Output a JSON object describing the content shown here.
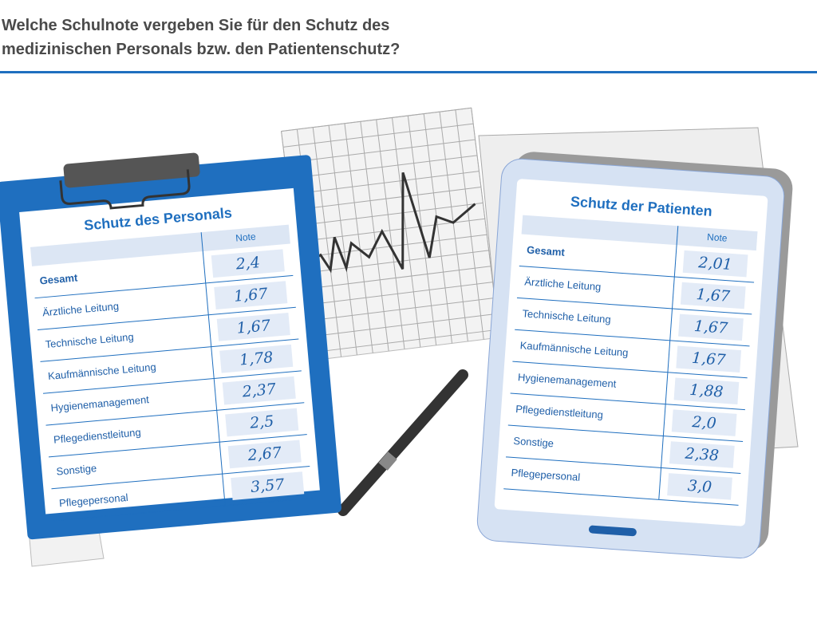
{
  "header": {
    "title_lines": [
      "Welche Schulnote vergeben Sie für den Schutz des",
      "medizinischen Personals bzw. den Patientenschutz?"
    ]
  },
  "clipboard": {
    "title": "Schutz des Personals",
    "column": "Note",
    "rows": [
      {
        "label": "Gesamt",
        "grade": "2,4"
      },
      {
        "label": "Ärztliche Leitung",
        "grade": "1,67"
      },
      {
        "label": "Technische Leitung",
        "grade": "1,67"
      },
      {
        "label": "Kaufmännische Leitung",
        "grade": "1,78"
      },
      {
        "label": "Hygienemanagement",
        "grade": "2,37"
      },
      {
        "label": "Pflegedienstleitung",
        "grade": "2,5"
      },
      {
        "label": "Sonstige",
        "grade": "2,67"
      },
      {
        "label": "Pflegepersonal",
        "grade": "3,57"
      }
    ]
  },
  "tablet": {
    "title": "Schutz der Patienten",
    "column": "Note",
    "rows": [
      {
        "label": "Gesamt",
        "grade": "2,01"
      },
      {
        "label": "Ärztliche Leitung",
        "grade": "1,67"
      },
      {
        "label": "Technische Leitung",
        "grade": "1,67"
      },
      {
        "label": "Kaufmännische Leitung",
        "grade": "1,67"
      },
      {
        "label": "Hygienemanagement",
        "grade": "1,88"
      },
      {
        "label": "Pflegedienstleitung",
        "grade": "2,0"
      },
      {
        "label": "Sonstige",
        "grade": "2,38"
      },
      {
        "label": "Pflegepersonal",
        "grade": "3,0"
      }
    ]
  }
}
